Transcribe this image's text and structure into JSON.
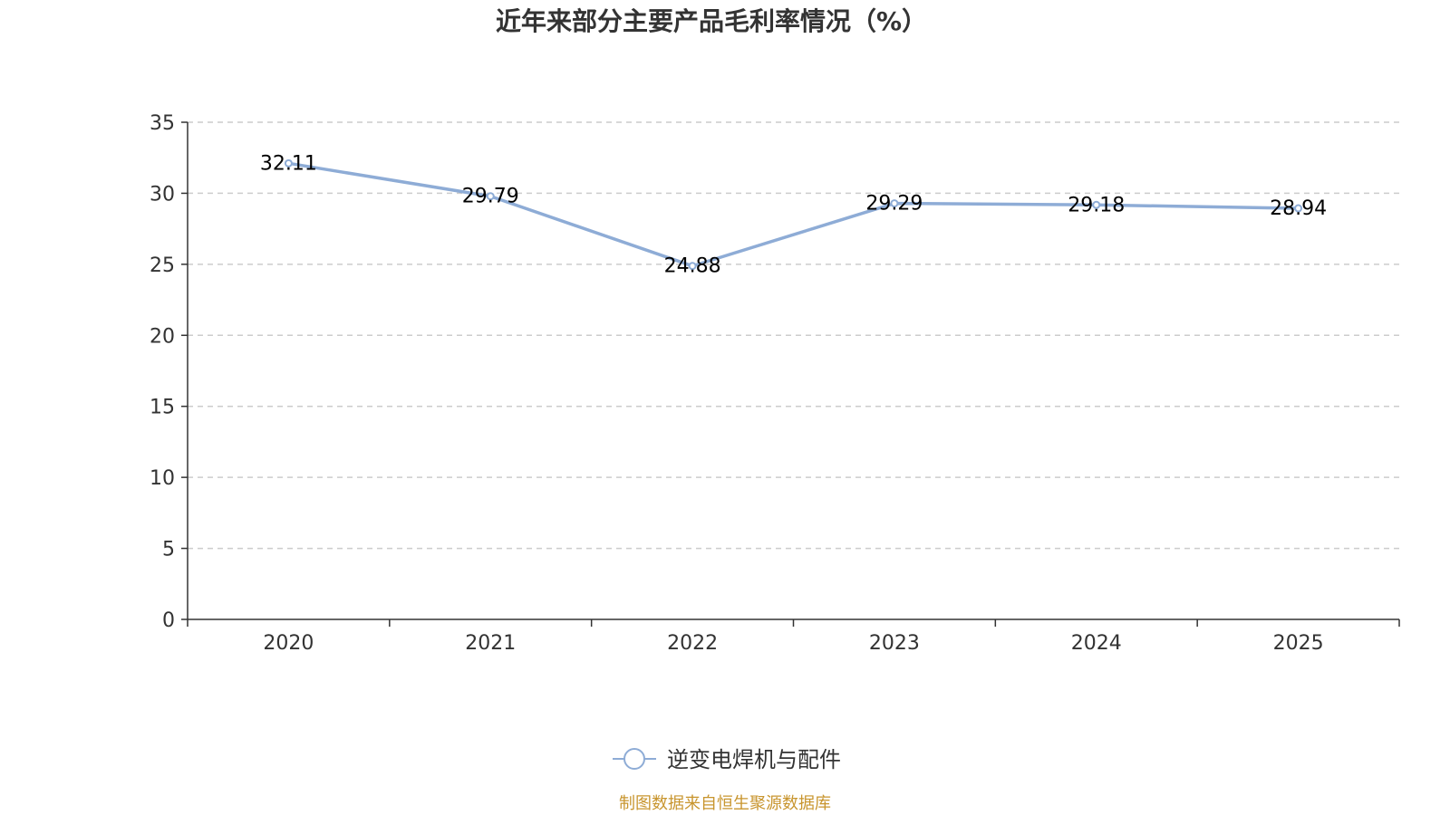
{
  "chart_data": {
    "type": "line",
    "title": "近年来部分主要产品毛利率情况（%）",
    "categories": [
      "2020",
      "2021",
      "2022",
      "2023",
      "2024",
      "2025"
    ],
    "series": [
      {
        "name": "逆变电焊机与配件",
        "values": [
          32.11,
          29.79,
          24.88,
          29.29,
          29.18,
          28.94
        ],
        "value_labels": [
          "32.11",
          "29.79",
          "24.88",
          "29.29",
          "29.18",
          "28.94"
        ],
        "color": "#8eacd6"
      }
    ],
    "ylim": [
      0,
      35
    ],
    "yticks": [
      0,
      5,
      10,
      15,
      20,
      25,
      30,
      35
    ],
    "grid": true,
    "legend_position": "bottom-center",
    "xlabel": "",
    "ylabel": ""
  },
  "footer": {
    "source": "制图数据来自恒生聚源数据库",
    "color": "#c8952e"
  }
}
